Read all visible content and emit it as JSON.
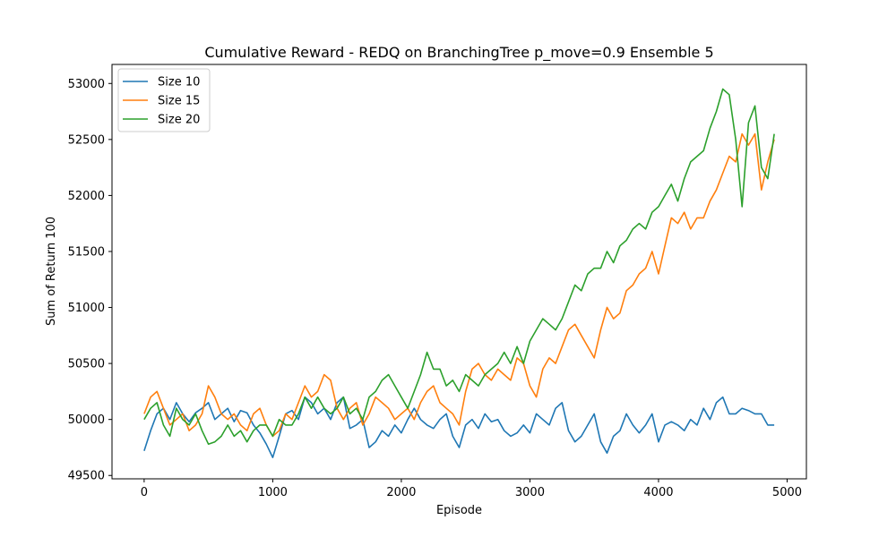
{
  "chart_data": {
    "type": "line",
    "title": "Cumulative Reward - REDQ on BranchingTree p_move=0.9 Ensemble 5",
    "xlabel": "Episode",
    "ylabel": "Sum of Return 100",
    "xlim": [
      -250,
      5150
    ],
    "ylim": [
      49470,
      53170
    ],
    "xticks": [
      0,
      1000,
      2000,
      3000,
      4000,
      5000
    ],
    "yticks": [
      49500,
      50000,
      50500,
      51000,
      51500,
      52000,
      52500,
      53000
    ],
    "legend_position": "upper-left",
    "grid": false,
    "series": [
      {
        "name": "Size 10",
        "color": "#1f77b4",
        "x": [
          0,
          50,
          100,
          150,
          200,
          250,
          300,
          350,
          400,
          450,
          500,
          550,
          600,
          650,
          700,
          750,
          800,
          850,
          900,
          950,
          1000,
          1050,
          1100,
          1150,
          1200,
          1250,
          1300,
          1350,
          1400,
          1450,
          1500,
          1550,
          1600,
          1650,
          1700,
          1750,
          1800,
          1850,
          1900,
          1950,
          2000,
          2050,
          2100,
          2150,
          2200,
          2250,
          2300,
          2350,
          2400,
          2450,
          2500,
          2550,
          2600,
          2650,
          2700,
          2750,
          2800,
          2850,
          2900,
          2950,
          3000,
          3050,
          3100,
          3150,
          3200,
          3250,
          3300,
          3350,
          3400,
          3450,
          3500,
          3550,
          3600,
          3650,
          3700,
          3750,
          3800,
          3850,
          3900,
          3950,
          4000,
          4050,
          4100,
          4150,
          4200,
          4250,
          4300,
          4350,
          4400,
          4450,
          4500,
          4550,
          4600,
          4650,
          4700,
          4750,
          4800,
          4850,
          4900
        ],
        "values": [
          49720,
          49900,
          50050,
          50100,
          50000,
          50150,
          50050,
          49980,
          50060,
          50100,
          50150,
          50000,
          50050,
          50100,
          49980,
          50080,
          50060,
          49950,
          49880,
          49780,
          49660,
          49850,
          50050,
          50080,
          50000,
          50200,
          50150,
          50050,
          50100,
          50000,
          50150,
          50200,
          49920,
          49950,
          50000,
          49750,
          49800,
          49900,
          49850,
          49950,
          49880,
          50000,
          50100,
          50000,
          49950,
          49920,
          50000,
          50050,
          49850,
          49750,
          49950,
          50000,
          49920,
          50050,
          49980,
          50000,
          49900,
          49850,
          49880,
          49950,
          49880,
          50050,
          50000,
          49950,
          50100,
          50150,
          49900,
          49800,
          49850,
          49950,
          50050,
          49800,
          49700,
          49850,
          49900,
          50050,
          49950,
          49880,
          49950,
          50050,
          49800,
          49950,
          49980,
          49950,
          49900,
          50000,
          49950,
          50100,
          50000,
          50150,
          50200,
          50050,
          50050,
          50100,
          50080,
          50050,
          50050,
          49950,
          49950
        ]
      },
      {
        "name": "Size 15",
        "color": "#ff7f0e",
        "x": [
          0,
          50,
          100,
          150,
          200,
          250,
          300,
          350,
          400,
          450,
          500,
          550,
          600,
          650,
          700,
          750,
          800,
          850,
          900,
          950,
          1000,
          1050,
          1100,
          1150,
          1200,
          1250,
          1300,
          1350,
          1400,
          1450,
          1500,
          1550,
          1600,
          1650,
          1700,
          1750,
          1800,
          1850,
          1900,
          1950,
          2000,
          2050,
          2100,
          2150,
          2200,
          2250,
          2300,
          2350,
          2400,
          2450,
          2500,
          2550,
          2600,
          2650,
          2700,
          2750,
          2800,
          2850,
          2900,
          2950,
          3000,
          3050,
          3100,
          3150,
          3200,
          3250,
          3300,
          3350,
          3400,
          3450,
          3500,
          3550,
          3600,
          3650,
          3700,
          3750,
          3800,
          3850,
          3900,
          3950,
          4000,
          4050,
          4100,
          4150,
          4200,
          4250,
          4300,
          4350,
          4400,
          4450,
          4500,
          4550,
          4600,
          4650,
          4700,
          4750,
          4800,
          4850,
          4900
        ],
        "values": [
          50050,
          50200,
          50250,
          50100,
          49950,
          50000,
          50050,
          49900,
          49950,
          50050,
          50300,
          50200,
          50050,
          50000,
          50050,
          49950,
          49900,
          50050,
          50100,
          49950,
          49850,
          49900,
          50050,
          50000,
          50150,
          50300,
          50200,
          50250,
          50400,
          50350,
          50100,
          50000,
          50100,
          50150,
          49950,
          50050,
          50200,
          50150,
          50100,
          50000,
          50050,
          50100,
          50000,
          50150,
          50250,
          50300,
          50150,
          50100,
          50050,
          49950,
          50250,
          50450,
          50500,
          50400,
          50350,
          50450,
          50400,
          50350,
          50550,
          50500,
          50300,
          50200,
          50450,
          50550,
          50500,
          50650,
          50800,
          50850,
          50750,
          50650,
          50550,
          50800,
          51000,
          50900,
          50950,
          51150,
          51200,
          51300,
          51350,
          51500,
          51300,
          51550,
          51800,
          51750,
          51850,
          51700,
          51800,
          51800,
          51950,
          52050,
          52200,
          52350,
          52300,
          52550,
          52450,
          52550,
          52050,
          52300,
          52500
        ]
      },
      {
        "name": "Size 20",
        "color": "#2ca02c",
        "x": [
          0,
          50,
          100,
          150,
          200,
          250,
          300,
          350,
          400,
          450,
          500,
          550,
          600,
          650,
          700,
          750,
          800,
          850,
          900,
          950,
          1000,
          1050,
          1100,
          1150,
          1200,
          1250,
          1300,
          1350,
          1400,
          1450,
          1500,
          1550,
          1600,
          1650,
          1700,
          1750,
          1800,
          1850,
          1900,
          1950,
          2000,
          2050,
          2100,
          2150,
          2200,
          2250,
          2300,
          2350,
          2400,
          2450,
          2500,
          2550,
          2600,
          2650,
          2700,
          2750,
          2800,
          2850,
          2900,
          2950,
          3000,
          3050,
          3100,
          3150,
          3200,
          3250,
          3300,
          3350,
          3400,
          3450,
          3500,
          3550,
          3600,
          3650,
          3700,
          3750,
          3800,
          3850,
          3900,
          3950,
          4000,
          4050,
          4100,
          4150,
          4200,
          4250,
          4300,
          4350,
          4400,
          4450,
          4500,
          4550,
          4600,
          4650,
          4700,
          4750,
          4800,
          4850,
          4900
        ],
        "values": [
          50000,
          50100,
          50150,
          49950,
          49850,
          50100,
          50000,
          49950,
          50050,
          49900,
          49780,
          49800,
          49850,
          49950,
          49850,
          49900,
          49800,
          49900,
          49950,
          49950,
          49850,
          50000,
          49950,
          49950,
          50050,
          50200,
          50100,
          50200,
          50100,
          50050,
          50100,
          50200,
          50050,
          50100,
          50000,
          50200,
          50250,
          50350,
          50400,
          50300,
          50200,
          50100,
          50250,
          50400,
          50600,
          50450,
          50450,
          50300,
          50350,
          50250,
          50400,
          50350,
          50300,
          50400,
          50450,
          50500,
          50600,
          50500,
          50650,
          50500,
          50700,
          50800,
          50900,
          50850,
          50800,
          50900,
          51050,
          51200,
          51150,
          51300,
          51350,
          51350,
          51500,
          51400,
          51550,
          51600,
          51700,
          51750,
          51700,
          51850,
          51900,
          52000,
          52100,
          51950,
          52150,
          52300,
          52350,
          52400,
          52600,
          52750,
          52950,
          52900,
          52500,
          51900,
          52650,
          52800,
          52250,
          52150,
          52550
        ]
      }
    ]
  }
}
